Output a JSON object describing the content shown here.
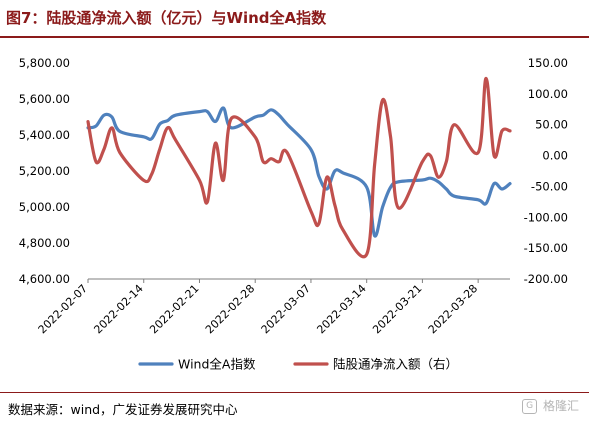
{
  "header": {
    "title": "图7：陆股通净流入额（亿元）与Wind全A指数"
  },
  "footer": {
    "source": "数据来源：wind，广发证券发展研究中心",
    "watermark_icon": "G",
    "watermark_text": "格隆汇"
  },
  "chart_data": {
    "type": "line",
    "x_ticks": [
      "2022-02-07",
      "2022-02-14",
      "2022-02-21",
      "2022-02-28",
      "2022-03-07",
      "2022-03-14",
      "2022-03-21",
      "2022-03-28"
    ],
    "x_range": [
      "2022-02-07",
      "2022-04-01"
    ],
    "y_left": {
      "min": 4600,
      "max": 5800,
      "step": 200,
      "ticks": [
        "4,600.00",
        "4,800.00",
        "5,000.00",
        "5,200.00",
        "5,400.00",
        "5,600.00",
        "5,800.00"
      ]
    },
    "y_right": {
      "min": -200,
      "max": 150,
      "step": 50,
      "ticks": [
        "-200.00",
        "-150.00",
        "-100.00",
        "-50.00",
        "0.00",
        "50.00",
        "100.00",
        "150.00"
      ]
    },
    "grid": false,
    "legend_position": "bottom",
    "series": [
      {
        "name": "Wind全A指数",
        "axis": "left",
        "color": "#4f81bd",
        "points": [
          [
            "2022-02-07",
            5440
          ],
          [
            "2022-02-08",
            5450
          ],
          [
            "2022-02-09",
            5510
          ],
          [
            "2022-02-10",
            5500
          ],
          [
            "2022-02-11",
            5420
          ],
          [
            "2022-02-14",
            5390
          ],
          [
            "2022-02-15",
            5380
          ],
          [
            "2022-02-16",
            5460
          ],
          [
            "2022-02-17",
            5480
          ],
          [
            "2022-02-18",
            5510
          ],
          [
            "2022-02-21",
            5530
          ],
          [
            "2022-02-22",
            5530
          ],
          [
            "2022-02-23",
            5475
          ],
          [
            "2022-02-24",
            5550
          ],
          [
            "2022-02-25",
            5440
          ],
          [
            "2022-02-28",
            5500
          ],
          [
            "2022-03-01",
            5510
          ],
          [
            "2022-03-02",
            5540
          ],
          [
            "2022-03-03",
            5510
          ],
          [
            "2022-03-04",
            5460
          ],
          [
            "2022-03-07",
            5320
          ],
          [
            "2022-03-08",
            5170
          ],
          [
            "2022-03-09",
            5100
          ],
          [
            "2022-03-10",
            5200
          ],
          [
            "2022-03-11",
            5190
          ],
          [
            "2022-03-14",
            5110
          ],
          [
            "2022-03-15",
            4840
          ],
          [
            "2022-03-16",
            5000
          ],
          [
            "2022-03-17",
            5110
          ],
          [
            "2022-03-18",
            5140
          ],
          [
            "2022-03-21",
            5150
          ],
          [
            "2022-03-22",
            5160
          ],
          [
            "2022-03-23",
            5140
          ],
          [
            "2022-03-24",
            5100
          ],
          [
            "2022-03-25",
            5060
          ],
          [
            "2022-03-28",
            5040
          ],
          [
            "2022-03-29",
            5020
          ],
          [
            "2022-03-30",
            5130
          ],
          [
            "2022-03-31",
            5100
          ],
          [
            "2022-04-01",
            5130
          ]
        ]
      },
      {
        "name": "陆股通净流入额（右）",
        "axis": "right",
        "color": "#c0504d",
        "points": [
          [
            "2022-02-07",
            55
          ],
          [
            "2022-02-08",
            -10
          ],
          [
            "2022-02-09",
            10
          ],
          [
            "2022-02-10",
            45
          ],
          [
            "2022-02-11",
            5
          ],
          [
            "2022-02-14",
            -40
          ],
          [
            "2022-02-15",
            -30
          ],
          [
            "2022-02-16",
            10
          ],
          [
            "2022-02-17",
            45
          ],
          [
            "2022-02-18",
            25
          ],
          [
            "2022-02-21",
            -40
          ],
          [
            "2022-02-22",
            -75
          ],
          [
            "2022-02-23",
            20
          ],
          [
            "2022-02-24",
            -40
          ],
          [
            "2022-02-25",
            60
          ],
          [
            "2022-02-28",
            30
          ],
          [
            "2022-03-01",
            -10
          ],
          [
            "2022-03-02",
            -5
          ],
          [
            "2022-03-03",
            -10
          ],
          [
            "2022-03-04",
            5
          ],
          [
            "2022-03-07",
            -90
          ],
          [
            "2022-03-08",
            -110
          ],
          [
            "2022-03-09",
            -35
          ],
          [
            "2022-03-10",
            -80
          ],
          [
            "2022-03-11",
            -120
          ],
          [
            "2022-03-14",
            -160
          ],
          [
            "2022-03-15",
            -15
          ],
          [
            "2022-03-16",
            90
          ],
          [
            "2022-03-17",
            30
          ],
          [
            "2022-03-18",
            -85
          ],
          [
            "2022-03-21",
            -10
          ],
          [
            "2022-03-22",
            0
          ],
          [
            "2022-03-23",
            -35
          ],
          [
            "2022-03-24",
            -10
          ],
          [
            "2022-03-25",
            50
          ],
          [
            "2022-03-28",
            5
          ],
          [
            "2022-03-29",
            125
          ],
          [
            "2022-03-30",
            0
          ],
          [
            "2022-03-31",
            40
          ],
          [
            "2022-04-01",
            40
          ]
        ]
      }
    ]
  }
}
